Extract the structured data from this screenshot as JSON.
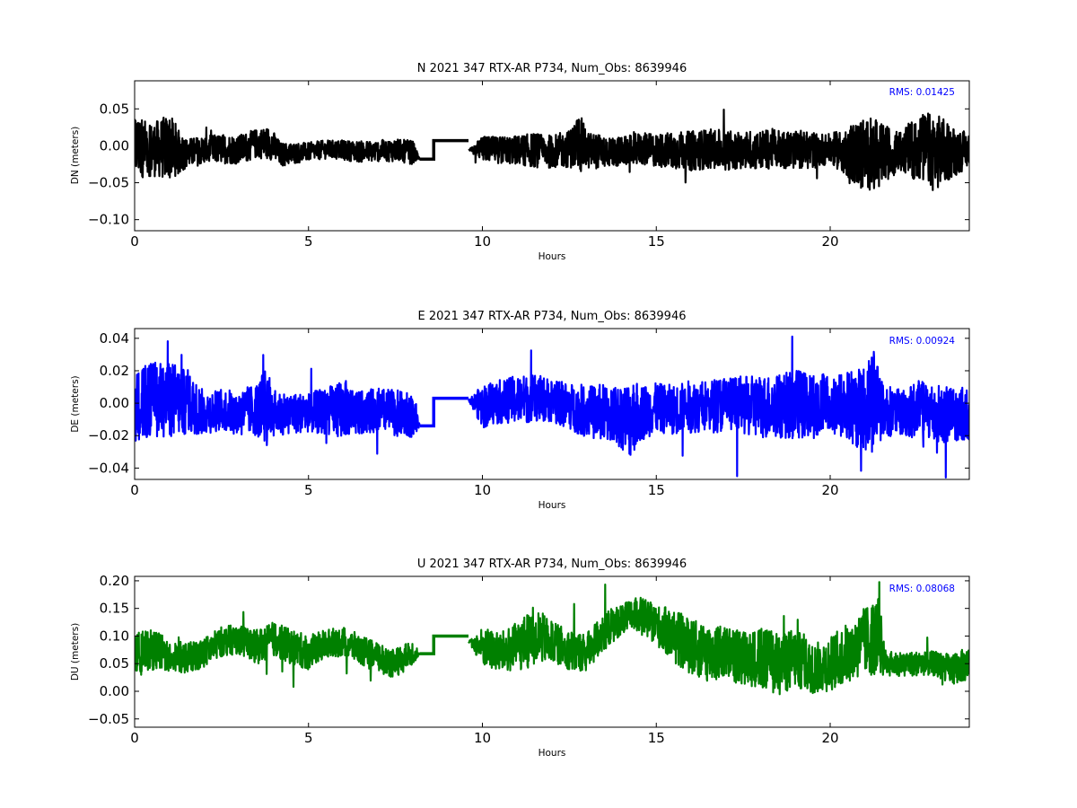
{
  "chart_data": [
    {
      "type": "line",
      "title": "N 2021 347 RTX-AR  P734, Num_Obs: 8639946",
      "xlabel": "Hours",
      "ylabel": "DN (meters)",
      "xlim": [
        0,
        24
      ],
      "ylim": [
        -0.115,
        0.088
      ],
      "x_ticks": [
        0,
        5,
        10,
        15,
        20
      ],
      "x_tick_labels": [
        "0",
        "5",
        "10",
        "15",
        "20"
      ],
      "y_ticks": [
        -0.1,
        -0.05,
        0.0,
        0.05
      ],
      "y_tick_labels": [
        "−0.10",
        "−0.05",
        "0.00",
        "0.05"
      ],
      "annotation": "RMS:  0.01425",
      "color": "#000000",
      "annotation_color": "#0000ff",
      "grid": false,
      "legend": "none",
      "series": [
        {
          "x": [
            0,
            0.5,
            1,
            1.5,
            2,
            2.5,
            3,
            3.5,
            3.9,
            4.2,
            5,
            5.5,
            6,
            6.5,
            7,
            7.5,
            8,
            8.2,
            8.6,
            9.6,
            10,
            10.5,
            11,
            11.5,
            12,
            12.5,
            12.8,
            13,
            13.5,
            14,
            14.5,
            15,
            15.5,
            16,
            16.5,
            17,
            17.5,
            18,
            18.5,
            19,
            19.5,
            20,
            20.5,
            21,
            21.5,
            22,
            22.5,
            23,
            23.5,
            24
          ],
          "y": [
            0.0,
            -0.005,
            -0.002,
            -0.01,
            -0.006,
            -0.004,
            -0.005,
            0.003,
            0.004,
            -0.012,
            -0.008,
            -0.005,
            -0.006,
            -0.008,
            -0.007,
            -0.006,
            -0.009,
            -0.018,
            0.007,
            -0.006,
            -0.004,
            -0.006,
            -0.006,
            -0.006,
            -0.008,
            -0.004,
            0.004,
            -0.006,
            -0.008,
            -0.008,
            -0.004,
            -0.006,
            -0.006,
            -0.007,
            -0.004,
            -0.006,
            -0.005,
            -0.006,
            -0.003,
            -0.006,
            -0.006,
            -0.004,
            -0.008,
            -0.012,
            -0.01,
            -0.008,
            -0.002,
            -0.008,
            -0.008,
            -0.006
          ],
          "envelope": [
            0.05,
            0.04,
            0.05,
            0.022,
            0.022,
            0.022,
            0.022,
            0.022,
            0.025,
            0.018,
            0.014,
            0.014,
            0.015,
            0.016,
            0.016,
            0.017,
            0.018,
            0.0,
            0.0,
            0.0,
            0.019,
            0.02,
            0.022,
            0.026,
            0.025,
            0.028,
            0.045,
            0.028,
            0.025,
            0.022,
            0.024,
            0.025,
            0.028,
            0.03,
            0.03,
            0.03,
            0.028,
            0.03,
            0.03,
            0.028,
            0.028,
            0.022,
            0.038,
            0.06,
            0.045,
            0.03,
            0.05,
            0.06,
            0.04,
            0.025
          ]
        }
      ]
    },
    {
      "type": "line",
      "title": "E 2021 347 RTX-AR  P734, Num_Obs: 8639946",
      "xlabel": "Hours",
      "ylabel": "DE (meters)",
      "xlim": [
        0,
        24
      ],
      "ylim": [
        -0.047,
        0.046
      ],
      "x_ticks": [
        0,
        5,
        10,
        15,
        20
      ],
      "x_tick_labels": [
        "0",
        "5",
        "10",
        "15",
        "20"
      ],
      "y_ticks": [
        -0.04,
        -0.02,
        0.0,
        0.02,
        0.04
      ],
      "y_tick_labels": [
        "−0.04",
        "−0.02",
        "0.00",
        "0.02",
        "0.04"
      ],
      "annotation": "RMS:  0.00924",
      "color": "#0000ff",
      "annotation_color": "#0000ff",
      "grid": false,
      "legend": "none",
      "series": [
        {
          "x": [
            0,
            0.5,
            1,
            1.5,
            2,
            2.5,
            3,
            3.5,
            3.8,
            4,
            4.5,
            5,
            5.5,
            6,
            6.5,
            7,
            7.5,
            8,
            8.2,
            8.6,
            9.6,
            10,
            10.5,
            11,
            11.5,
            12,
            12.5,
            13,
            13.5,
            14,
            14.3,
            14.5,
            15,
            15.5,
            16,
            16.5,
            17,
            17.5,
            18,
            18.5,
            19,
            19.5,
            20,
            20.5,
            21,
            21.3,
            21.5,
            22,
            22.5,
            23,
            23.5,
            24
          ],
          "y": [
            -0.002,
            0.002,
            0.003,
            0.0,
            -0.006,
            -0.004,
            -0.006,
            -0.004,
            -0.002,
            -0.006,
            -0.006,
            -0.006,
            -0.005,
            -0.003,
            -0.006,
            -0.004,
            -0.006,
            -0.008,
            -0.014,
            0.003,
            0.002,
            -0.002,
            0.001,
            0.002,
            0.003,
            0.002,
            -0.002,
            -0.005,
            -0.006,
            -0.008,
            -0.01,
            -0.006,
            -0.003,
            -0.004,
            -0.002,
            -0.002,
            0.0,
            -0.002,
            -0.002,
            -0.002,
            0.0,
            -0.002,
            0.0,
            -0.002,
            -0.003,
            0.005,
            -0.004,
            -0.006,
            -0.004,
            -0.006,
            -0.008,
            -0.006
          ],
          "envelope": [
            0.024,
            0.026,
            0.027,
            0.022,
            0.015,
            0.014,
            0.016,
            0.018,
            0.028,
            0.016,
            0.014,
            0.014,
            0.016,
            0.02,
            0.015,
            0.015,
            0.016,
            0.015,
            0.0,
            0.0,
            0.0,
            0.015,
            0.015,
            0.017,
            0.016,
            0.015,
            0.016,
            0.018,
            0.02,
            0.022,
            0.028,
            0.02,
            0.017,
            0.017,
            0.018,
            0.018,
            0.02,
            0.02,
            0.022,
            0.022,
            0.024,
            0.022,
            0.022,
            0.025,
            0.03,
            0.04,
            0.018,
            0.016,
            0.02,
            0.022,
            0.02,
            0.018
          ]
        }
      ]
    },
    {
      "type": "line",
      "title": "U 2021 347 RTX-AR  P734, Num_Obs: 8639946",
      "xlabel": "Hours",
      "ylabel": "DU (meters)",
      "xlim": [
        0,
        24
      ],
      "ylim": [
        -0.065,
        0.208
      ],
      "x_ticks": [
        0,
        5,
        10,
        15,
        20
      ],
      "x_tick_labels": [
        "0",
        "5",
        "10",
        "15",
        "20"
      ],
      "y_ticks": [
        -0.05,
        0.0,
        0.05,
        0.1,
        0.15,
        0.2
      ],
      "y_tick_labels": [
        "−0.05",
        "0.00",
        "0.05",
        "0.10",
        "0.15",
        "0.20"
      ],
      "annotation": "RMS:  0.08068",
      "color": "#008000",
      "annotation_color": "#0000ff",
      "grid": false,
      "legend": "none",
      "series": [
        {
          "x": [
            0,
            0.5,
            1,
            1.5,
            2,
            2.5,
            3,
            3.5,
            4,
            4.5,
            5,
            5.5,
            6,
            6.5,
            7,
            7.5,
            8,
            8.2,
            8.6,
            9.6,
            10,
            10.5,
            11,
            11.5,
            12,
            12.5,
            13,
            13.5,
            14,
            14.5,
            15,
            15.5,
            16,
            16.5,
            17,
            17.5,
            18,
            18.5,
            19,
            19.5,
            20,
            20.5,
            21,
            21.4,
            21.6,
            22,
            22.5,
            23,
            23.5,
            24
          ],
          "y": [
            0.07,
            0.075,
            0.065,
            0.06,
            0.07,
            0.09,
            0.095,
            0.08,
            0.095,
            0.08,
            0.07,
            0.085,
            0.09,
            0.075,
            0.06,
            0.05,
            0.07,
            0.068,
            0.1,
            0.09,
            0.08,
            0.07,
            0.08,
            0.1,
            0.09,
            0.075,
            0.07,
            0.11,
            0.13,
            0.14,
            0.12,
            0.1,
            0.08,
            0.07,
            0.07,
            0.06,
            0.06,
            0.05,
            0.06,
            0.04,
            0.05,
            0.07,
            0.09,
            0.1,
            0.05,
            0.05,
            0.05,
            0.05,
            0.04,
            0.05
          ],
          "envelope": [
            0.04,
            0.04,
            0.035,
            0.03,
            0.03,
            0.03,
            0.03,
            0.035,
            0.035,
            0.035,
            0.035,
            0.03,
            0.03,
            0.03,
            0.03,
            0.03,
            0.025,
            0.0,
            0.0,
            0.0,
            0.04,
            0.04,
            0.05,
            0.06,
            0.04,
            0.04,
            0.04,
            0.04,
            0.03,
            0.035,
            0.04,
            0.055,
            0.055,
            0.06,
            0.055,
            0.055,
            0.06,
            0.065,
            0.06,
            0.05,
            0.055,
            0.06,
            0.07,
            0.08,
            0.025,
            0.025,
            0.025,
            0.025,
            0.03,
            0.035
          ]
        }
      ]
    }
  ]
}
